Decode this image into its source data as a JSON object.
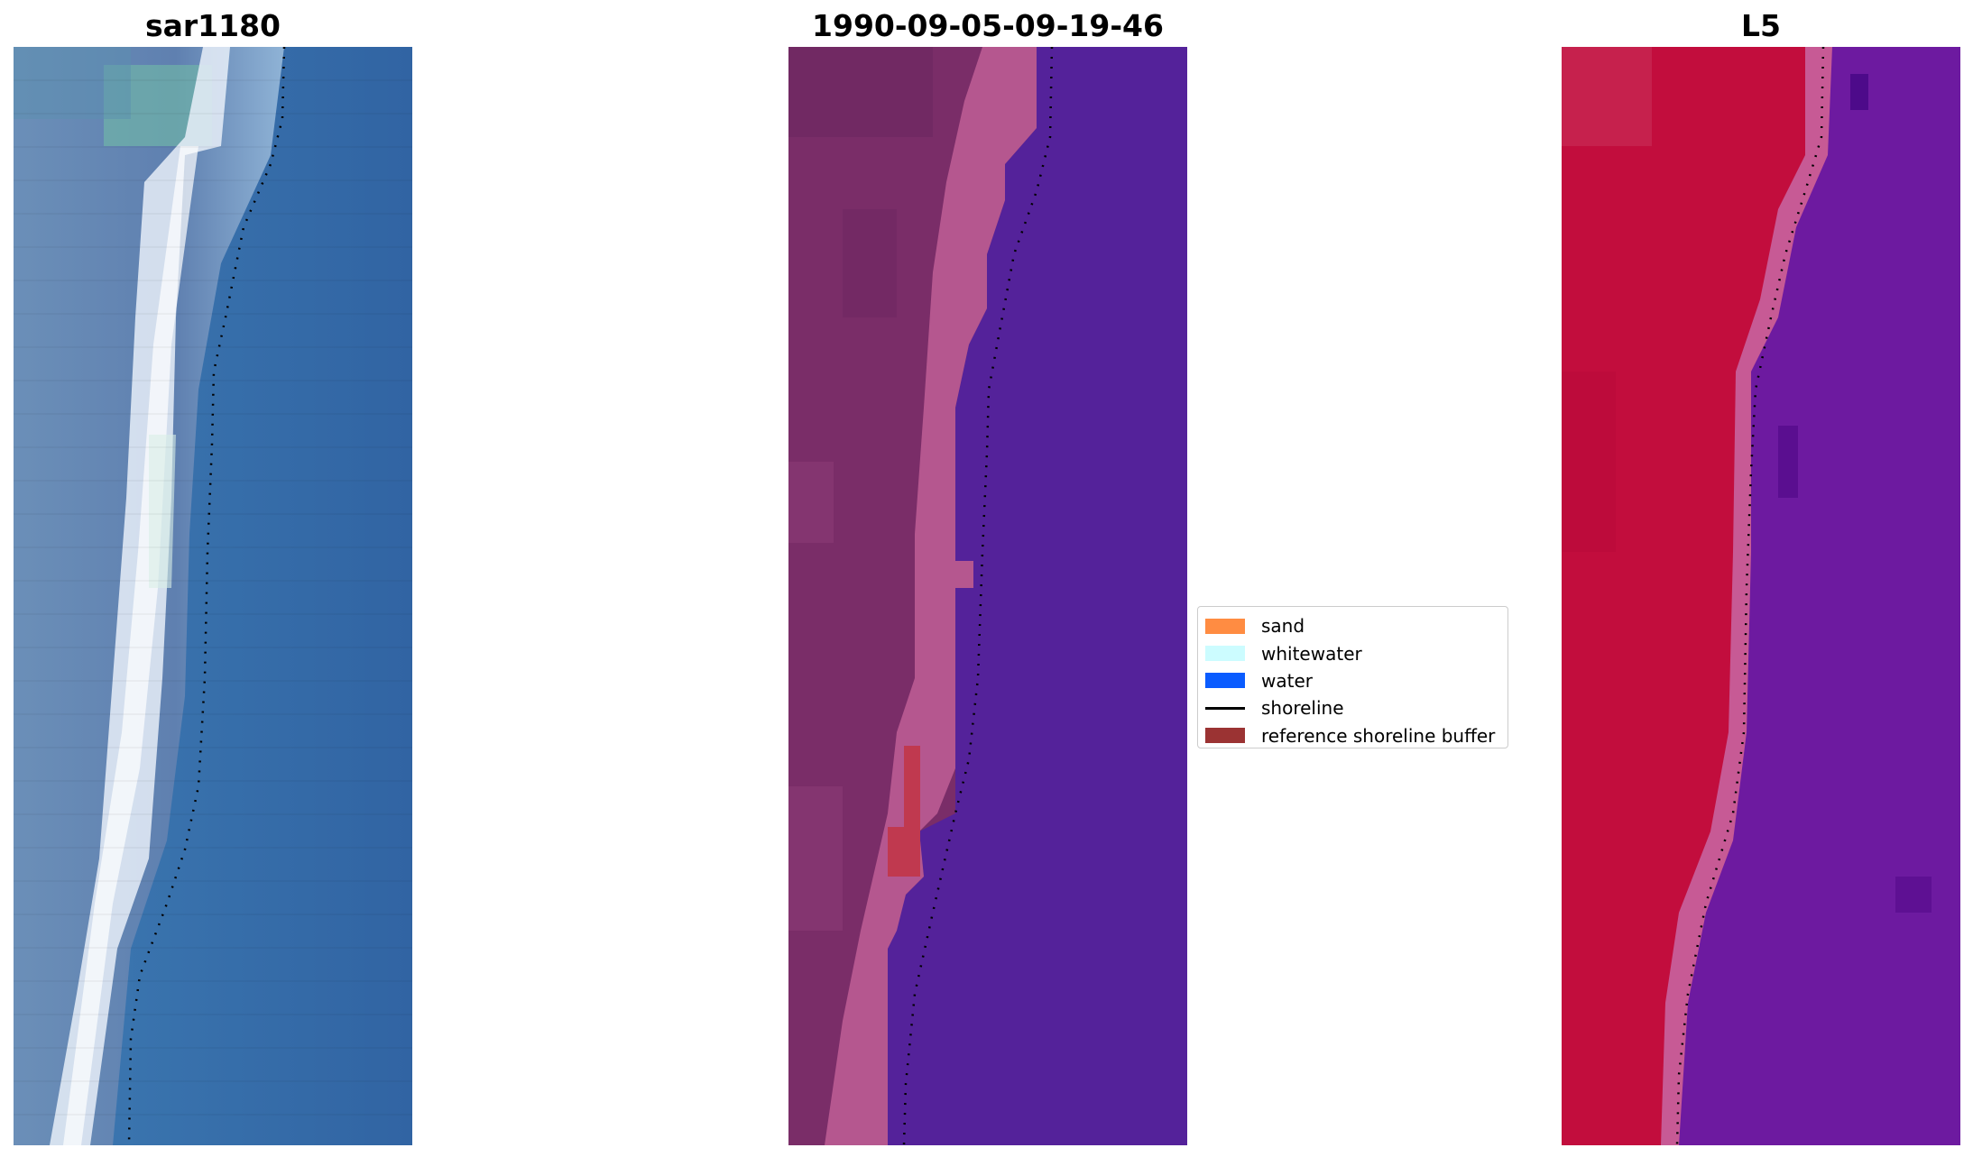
{
  "panels": [
    {
      "id": "rgb",
      "title": "sar1180"
    },
    {
      "id": "classified",
      "title": "1990-09-05-09-19-46"
    },
    {
      "id": "mndwi",
      "title": "L5"
    }
  ],
  "legend": {
    "items": [
      {
        "label": "sand",
        "kind": "patch",
        "color": "#ff8c42"
      },
      {
        "label": "whitewater",
        "kind": "patch",
        "color": "#ccfcff"
      },
      {
        "label": "water",
        "kind": "patch",
        "color": "#0a5cff"
      },
      {
        "label": "shoreline",
        "kind": "line",
        "color": "#000000"
      },
      {
        "label": "reference shoreline buffer",
        "kind": "patch",
        "color": "#9b3333"
      }
    ]
  },
  "colors": {
    "water_blue": "#3a74ad",
    "classified_water": "#54229a",
    "classified_land": "#7a2d68",
    "classified_beach": "#b5578f",
    "buffer_red": "#c0394f",
    "mndwi_land": "#c20d3d",
    "mndwi_water": "#6d1aa0"
  }
}
